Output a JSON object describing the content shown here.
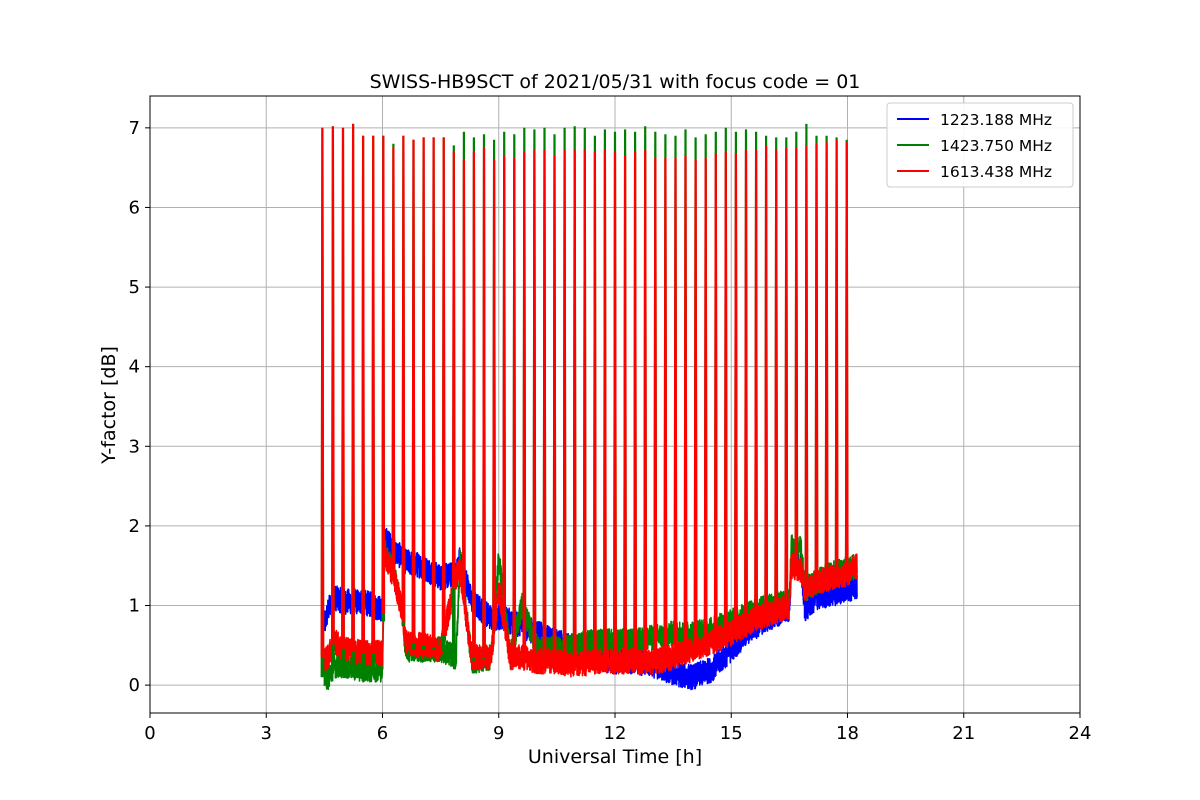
{
  "chart_data": {
    "type": "line",
    "title": "SWISS-HB9SCT of 2021/05/31 with focus code = 01",
    "xlabel": "Universal Time [h]",
    "ylabel": "Y-factor [dB]",
    "xlim": [
      0,
      24
    ],
    "ylim": [
      -0.35,
      7.4
    ],
    "xticks": [
      0,
      3,
      6,
      9,
      12,
      15,
      18,
      21,
      24
    ],
    "yticks": [
      0,
      1,
      2,
      3,
      4,
      5,
      6,
      7
    ],
    "grid": true,
    "legend_position": "top-right",
    "series": [
      {
        "name": "1223.188 MHz",
        "color": "#0000ff",
        "baseline": [
          [
            4.5,
            0.75
          ],
          [
            4.6,
            0.95
          ],
          [
            4.75,
            1.1
          ],
          [
            5.0,
            1.05
          ],
          [
            5.5,
            1.05
          ],
          [
            6.0,
            0.95
          ],
          [
            6.05,
            1.85
          ],
          [
            6.3,
            1.7
          ],
          [
            6.6,
            1.55
          ],
          [
            7.0,
            1.5
          ],
          [
            7.5,
            1.35
          ],
          [
            7.9,
            1.4
          ],
          [
            8.0,
            1.6
          ],
          [
            8.3,
            1.05
          ],
          [
            8.8,
            0.85
          ],
          [
            9.0,
            0.85
          ],
          [
            9.3,
            0.8
          ],
          [
            9.6,
            0.75
          ],
          [
            10.0,
            0.65
          ],
          [
            10.5,
            0.55
          ],
          [
            11.0,
            0.45
          ],
          [
            11.5,
            0.35
          ],
          [
            12.0,
            0.3
          ],
          [
            12.5,
            0.3
          ],
          [
            13.0,
            0.25
          ],
          [
            13.5,
            0.15
          ],
          [
            14.0,
            0.1
          ],
          [
            14.5,
            0.2
          ],
          [
            15.0,
            0.45
          ],
          [
            15.5,
            0.7
          ],
          [
            16.0,
            0.85
          ],
          [
            16.5,
            0.95
          ],
          [
            16.55,
            1.55
          ],
          [
            16.8,
            1.5
          ],
          [
            16.9,
            0.95
          ],
          [
            17.2,
            1.1
          ],
          [
            17.6,
            1.15
          ],
          [
            18.0,
            1.2
          ],
          [
            18.25,
            1.25
          ]
        ]
      },
      {
        "name": "1423.750 MHz",
        "color": "#008000",
        "baseline": [
          [
            4.5,
            0.1
          ],
          [
            4.6,
            0.1
          ],
          [
            4.75,
            0.25
          ],
          [
            5.0,
            0.25
          ],
          [
            5.5,
            0.2
          ],
          [
            6.0,
            0.2
          ],
          [
            6.05,
            1.7
          ],
          [
            6.3,
            1.4
          ],
          [
            6.5,
            0.95
          ],
          [
            6.6,
            0.45
          ],
          [
            7.0,
            0.45
          ],
          [
            7.5,
            0.45
          ],
          [
            7.9,
            0.35
          ],
          [
            8.0,
            1.6
          ],
          [
            8.3,
            0.3
          ],
          [
            8.8,
            0.35
          ],
          [
            9.0,
            1.6
          ],
          [
            9.3,
            0.35
          ],
          [
            9.6,
            1.0
          ],
          [
            10.0,
            0.45
          ],
          [
            10.5,
            0.45
          ],
          [
            11.0,
            0.5
          ],
          [
            11.5,
            0.55
          ],
          [
            12.0,
            0.55
          ],
          [
            12.5,
            0.55
          ],
          [
            13.0,
            0.6
          ],
          [
            13.5,
            0.65
          ],
          [
            14.0,
            0.65
          ],
          [
            14.5,
            0.7
          ],
          [
            15.0,
            0.8
          ],
          [
            15.5,
            0.9
          ],
          [
            16.0,
            1.0
          ],
          [
            16.5,
            1.05
          ],
          [
            16.55,
            1.75
          ],
          [
            16.8,
            1.7
          ],
          [
            16.9,
            1.2
          ],
          [
            17.2,
            1.3
          ],
          [
            17.6,
            1.4
          ],
          [
            18.0,
            1.45
          ],
          [
            18.25,
            1.5
          ]
        ]
      },
      {
        "name": "1613.438 MHz",
        "color": "#ff0000",
        "baseline": [
          [
            4.5,
            0.35
          ],
          [
            4.6,
            0.35
          ],
          [
            4.75,
            0.55
          ],
          [
            5.0,
            0.45
          ],
          [
            5.5,
            0.4
          ],
          [
            6.0,
            0.4
          ],
          [
            6.05,
            1.65
          ],
          [
            6.3,
            1.35
          ],
          [
            6.5,
            0.95
          ],
          [
            6.6,
            0.55
          ],
          [
            7.0,
            0.5
          ],
          [
            7.5,
            0.45
          ],
          [
            7.9,
            1.35
          ],
          [
            8.0,
            1.45
          ],
          [
            8.3,
            0.35
          ],
          [
            8.8,
            0.35
          ],
          [
            9.0,
            1.2
          ],
          [
            9.3,
            0.35
          ],
          [
            9.6,
            0.35
          ],
          [
            10.0,
            0.3
          ],
          [
            10.5,
            0.3
          ],
          [
            11.0,
            0.25
          ],
          [
            11.5,
            0.3
          ],
          [
            12.0,
            0.3
          ],
          [
            12.5,
            0.3
          ],
          [
            13.0,
            0.3
          ],
          [
            13.5,
            0.35
          ],
          [
            14.0,
            0.45
          ],
          [
            14.5,
            0.55
          ],
          [
            15.0,
            0.65
          ],
          [
            15.5,
            0.8
          ],
          [
            16.0,
            0.9
          ],
          [
            16.5,
            1.0
          ],
          [
            16.55,
            1.5
          ],
          [
            16.8,
            1.45
          ],
          [
            16.9,
            1.2
          ],
          [
            17.2,
            1.3
          ],
          [
            17.6,
            1.35
          ],
          [
            18.0,
            1.4
          ],
          [
            18.25,
            1.5
          ]
        ]
      }
    ],
    "spike_times": [
      4.45,
      4.72,
      4.98,
      5.24,
      5.5,
      5.76,
      6.02,
      6.28,
      6.54,
      6.8,
      7.06,
      7.32,
      7.58,
      7.84,
      8.1,
      8.36,
      8.62,
      8.88,
      9.14,
      9.4,
      9.66,
      9.92,
      10.18,
      10.44,
      10.7,
      10.96,
      11.22,
      11.48,
      11.74,
      12.0,
      12.26,
      12.52,
      12.78,
      13.04,
      13.3,
      13.56,
      13.82,
      14.08,
      14.34,
      14.6,
      14.86,
      15.12,
      15.38,
      15.64,
      15.9,
      16.16,
      16.42,
      16.68,
      16.94,
      17.2,
      17.46,
      17.72,
      17.98
    ],
    "spike_peaks_red": [
      7.0,
      7.02,
      7.0,
      7.05,
      6.9,
      6.9,
      6.9,
      6.75,
      6.9,
      6.85,
      6.88,
      6.88,
      6.88,
      6.7,
      6.6,
      6.7,
      6.75,
      6.6,
      6.65,
      6.62,
      6.7,
      6.72,
      6.72,
      6.65,
      6.72,
      6.72,
      6.72,
      6.7,
      6.72,
      6.7,
      6.65,
      6.7,
      6.72,
      6.62,
      6.62,
      6.62,
      6.65,
      6.6,
      6.62,
      6.68,
      6.7,
      6.68,
      6.72,
      6.72,
      6.78,
      6.72,
      6.75,
      6.75,
      6.78,
      6.8,
      6.82,
      6.85,
      6.82
    ],
    "spike_peaks_green": [
      7.0,
      7.02,
      7.0,
      7.05,
      6.9,
      6.9,
      6.9,
      6.8,
      6.9,
      6.85,
      6.88,
      6.88,
      6.88,
      6.78,
      6.95,
      6.88,
      6.92,
      6.85,
      6.95,
      6.92,
      7.0,
      6.98,
      7.0,
      6.92,
      7.0,
      7.02,
      7.0,
      6.9,
      6.98,
      6.95,
      6.98,
      6.95,
      7.02,
      6.95,
      6.92,
      6.9,
      6.98,
      6.88,
      6.92,
      6.95,
      7.0,
      6.95,
      6.98,
      6.95,
      6.9,
      6.88,
      6.88,
      6.95,
      7.05,
      6.9,
      6.9,
      6.88,
      6.85
    ]
  }
}
